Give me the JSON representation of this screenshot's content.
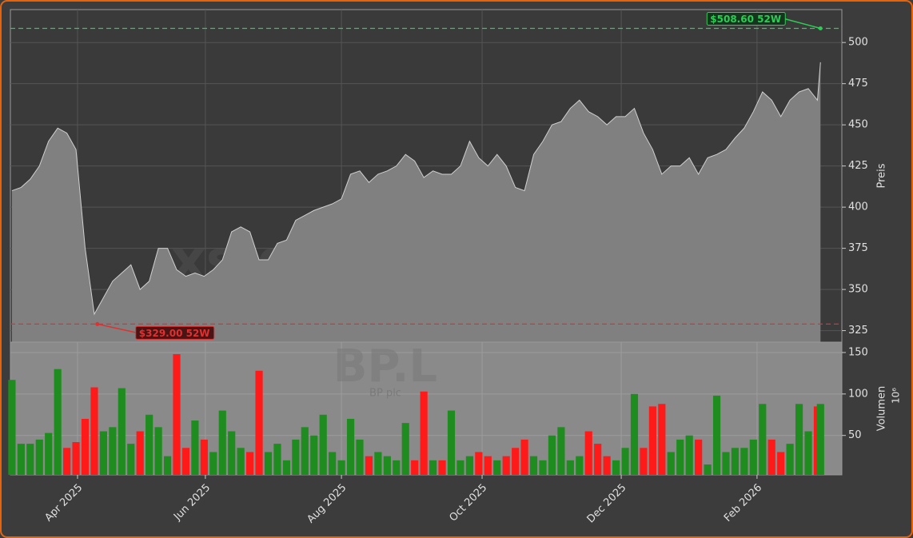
{
  "chart_data": [
    {
      "type": "area",
      "ylabel": "Preis",
      "watermark": "xsignale.trade",
      "color": "#808080",
      "line_color": "#d0d0d0",
      "x": [
        0,
        3,
        6,
        9,
        12,
        15,
        18,
        21,
        24,
        27,
        30,
        33,
        36,
        39,
        42,
        45,
        48,
        51,
        54,
        57,
        60,
        63,
        66,
        69,
        72,
        75,
        78,
        81,
        84,
        87,
        90,
        93,
        96,
        99,
        102,
        105,
        108,
        111,
        114,
        117,
        120,
        123,
        126,
        129,
        132,
        135,
        138,
        141,
        144,
        147,
        150,
        153,
        156,
        159,
        162,
        165,
        168,
        171,
        174,
        177,
        180,
        183,
        186,
        189,
        192,
        195,
        198,
        201,
        204,
        207,
        210,
        213,
        216,
        219,
        222,
        225,
        228,
        231,
        234,
        237,
        240,
        243,
        246,
        249,
        252,
        255,
        258,
        261,
        264,
        265
      ],
      "values": [
        410,
        412,
        417,
        425,
        440,
        448,
        445,
        435,
        375,
        335,
        345,
        355,
        360,
        365,
        350,
        355,
        375,
        375,
        362,
        358,
        360,
        358,
        362,
        368,
        385,
        388,
        385,
        368,
        368,
        378,
        380,
        392,
        395,
        398,
        400,
        402,
        405,
        420,
        422,
        415,
        420,
        422,
        425,
        432,
        428,
        418,
        422,
        420,
        420,
        425,
        440,
        430,
        425,
        432,
        425,
        412,
        410,
        432,
        440,
        450,
        452,
        460,
        465,
        458,
        455,
        450,
        455,
        455,
        460,
        445,
        435,
        420,
        425,
        425,
        430,
        420,
        430,
        432,
        435,
        442,
        448,
        458,
        470,
        465,
        455,
        465,
        470,
        472,
        465,
        488
      ],
      "xlim": [
        -0.5,
        272
      ],
      "ylim": [
        318,
        520
      ],
      "yticks": [
        325,
        350,
        375,
        400,
        425,
        450,
        475,
        500
      ],
      "grid": true,
      "annotations": [
        {
          "value": 508.6,
          "label": "$508.60 52W",
          "color": "#2ecc55",
          "x": 265
        },
        {
          "value": 329,
          "label": "$329.00 52W",
          "color": "#e03030",
          "x": 28
        }
      ]
    },
    {
      "type": "bar",
      "ylabel": "Volumen",
      "unit_label": "10⁶",
      "watermark": "BP.L",
      "subtitle": "BP plc",
      "up_color": "#1e8c1e",
      "down_color": "#ff1a1a",
      "x": [
        0,
        3,
        6,
        9,
        12,
        15,
        18,
        21,
        24,
        27,
        30,
        33,
        36,
        39,
        42,
        45,
        48,
        51,
        54,
        57,
        60,
        63,
        66,
        69,
        72,
        75,
        78,
        81,
        84,
        87,
        90,
        93,
        96,
        99,
        102,
        105,
        108,
        111,
        114,
        117,
        120,
        123,
        126,
        129,
        132,
        135,
        138,
        141,
        144,
        147,
        150,
        153,
        156,
        159,
        162,
        165,
        168,
        171,
        174,
        177,
        180,
        183,
        186,
        189,
        192,
        195,
        198,
        201,
        204,
        207,
        210,
        213,
        216,
        219,
        222,
        225,
        228,
        231,
        234,
        237,
        240,
        243,
        246,
        249,
        252,
        255,
        258,
        261,
        264,
        265
      ],
      "values": [
        117,
        40,
        40,
        45,
        53,
        130,
        35,
        42,
        70,
        108,
        55,
        60,
        107,
        40,
        55,
        75,
        60,
        25,
        148,
        35,
        68,
        45,
        30,
        80,
        55,
        35,
        30,
        128,
        30,
        40,
        20,
        45,
        60,
        50,
        75,
        30,
        20,
        70,
        45,
        25,
        30,
        25,
        20,
        65,
        20,
        103,
        20,
        20,
        80,
        20,
        25,
        30,
        25,
        20,
        25,
        35,
        45,
        25,
        20,
        50,
        60,
        20,
        25,
        55,
        40,
        25,
        20,
        35,
        100,
        35,
        85,
        88,
        30,
        45,
        50,
        45,
        15,
        98,
        30,
        35,
        35,
        45,
        88,
        45,
        30,
        40,
        88,
        55,
        85,
        88
      ],
      "xlim": [
        -0.5,
        272
      ],
      "ylim": [
        2.5,
        162.5
      ],
      "yticks": [
        50,
        100,
        150
      ],
      "grid": true,
      "xticks": [
        {
          "value": 21.5,
          "label": "Apr 2025"
        },
        {
          "value": 63.4,
          "label": "Jun 2025"
        },
        {
          "value": 108,
          "label": "Aug 2025"
        },
        {
          "value": 154.1,
          "label": "Oct 2025"
        },
        {
          "value": 199.7,
          "label": "Dec 2025"
        },
        {
          "value": 244.2,
          "label": "Feb 2026"
        }
      ]
    }
  ]
}
